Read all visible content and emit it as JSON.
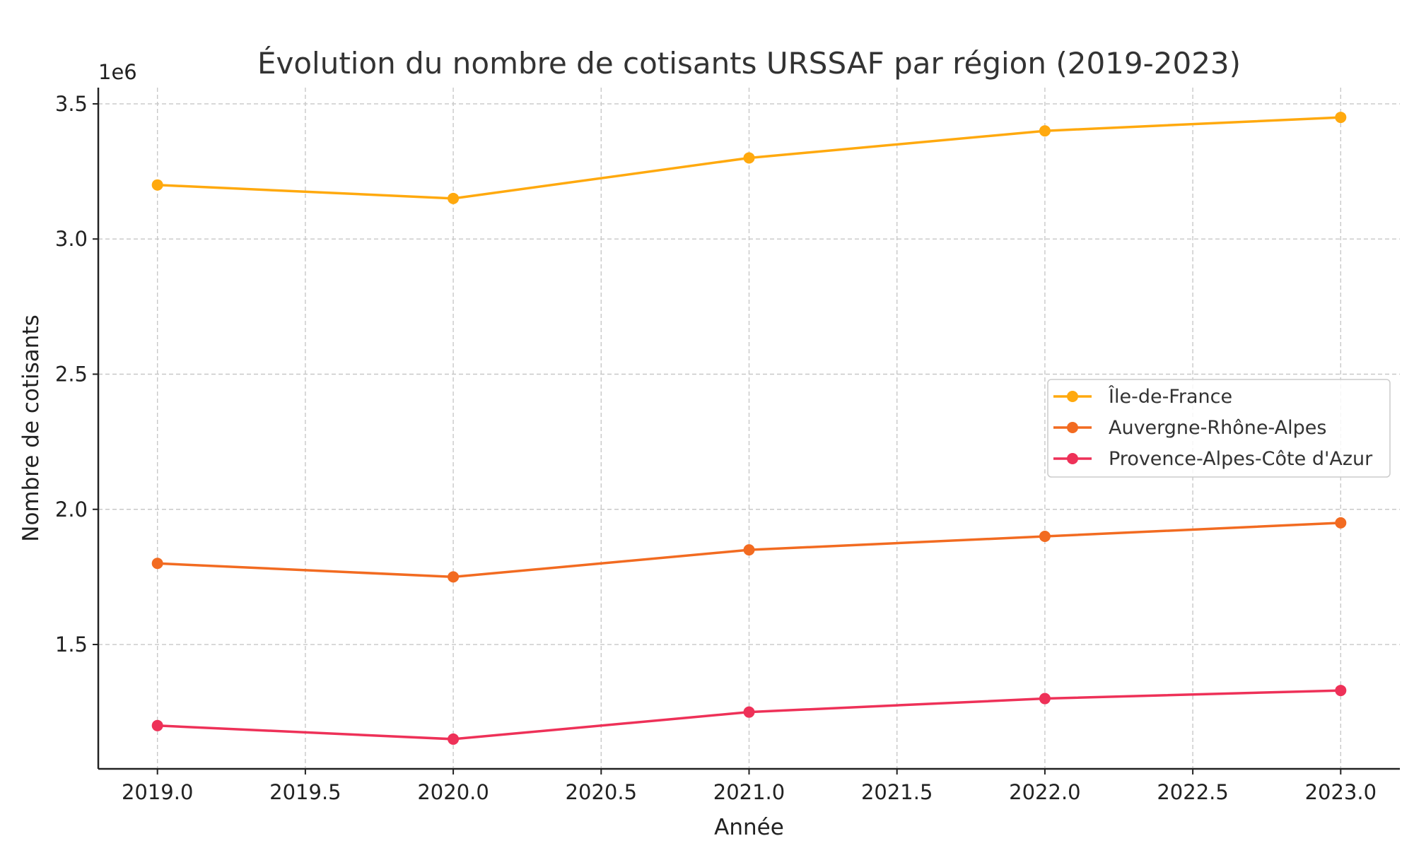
{
  "chart_data": {
    "type": "line",
    "title": "Évolution du nombre de cotisants URSSAF par région (2019-2023)",
    "xlabel": "Année",
    "ylabel": "Nombre de cotisants",
    "y_offset_label": "1e6",
    "x": [
      2019,
      2020,
      2021,
      2022,
      2023
    ],
    "xlim": [
      2018.8,
      2023.2
    ],
    "ylim": [
      1040000,
      3560000
    ],
    "x_ticks": [
      2019.0,
      2019.5,
      2020.0,
      2020.5,
      2021.0,
      2021.5,
      2022.0,
      2022.5,
      2023.0
    ],
    "x_tick_labels": [
      "2019.0",
      "2019.5",
      "2020.0",
      "2020.5",
      "2021.0",
      "2021.5",
      "2022.0",
      "2022.5",
      "2023.0"
    ],
    "y_ticks": [
      1500000,
      2000000,
      2500000,
      3000000,
      3500000
    ],
    "y_tick_labels": [
      "1.5",
      "2.0",
      "2.5",
      "3.0",
      "3.5"
    ],
    "grid": true,
    "legend_position": "right",
    "series": [
      {
        "name": "Île-de-France",
        "color": "#FFA90E",
        "values": [
          3200000,
          3150000,
          3300000,
          3400000,
          3450000
        ]
      },
      {
        "name": "Auvergne-Rhône-Alpes",
        "color": "#F26B21",
        "values": [
          1800000,
          1750000,
          1850000,
          1900000,
          1950000
        ]
      },
      {
        "name": "Provence-Alpes-Côte d'Azur",
        "color": "#EE3158",
        "values": [
          1200000,
          1150000,
          1250000,
          1300000,
          1330000
        ]
      }
    ]
  }
}
